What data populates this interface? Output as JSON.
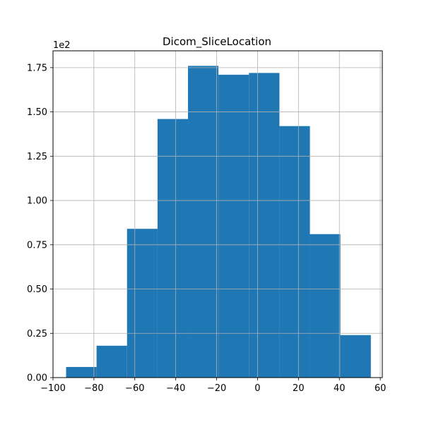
{
  "chart_data": {
    "type": "bar",
    "title": "Dicom_SliceLocation",
    "xlabel": "",
    "ylabel": "",
    "y_offset_label": "1e2",
    "bar_color": "#1f77b4",
    "grid": true,
    "xlim": [
      -100,
      61
    ],
    "ylim": [
      0,
      1.845
    ],
    "x_ticks": [
      -100,
      -80,
      -60,
      -40,
      -20,
      0,
      20,
      40,
      60
    ],
    "x_tick_labels": [
      "−100",
      "−80",
      "−60",
      "−40",
      "−20",
      "0",
      "20",
      "40",
      "60"
    ],
    "y_ticks": [
      0,
      0.25,
      0.5,
      0.75,
      1.0,
      1.25,
      1.5,
      1.75
    ],
    "y_tick_labels": [
      "0.00",
      "0.25",
      "0.50",
      "0.75",
      "1.00",
      "1.25",
      "1.50",
      "1.75"
    ],
    "bins": [
      {
        "x0": -93.6,
        "x1": -78.7,
        "value": 0.06
      },
      {
        "x0": -78.7,
        "x1": -63.8,
        "value": 0.18
      },
      {
        "x0": -63.8,
        "x1": -48.9,
        "value": 0.84
      },
      {
        "x0": -48.9,
        "x1": -34.0,
        "value": 1.46
      },
      {
        "x0": -34.0,
        "x1": -19.1,
        "value": 1.76
      },
      {
        "x0": -19.1,
        "x1": -4.2,
        "value": 1.71
      },
      {
        "x0": -4.2,
        "x1": 10.7,
        "value": 1.72
      },
      {
        "x0": 10.7,
        "x1": 25.6,
        "value": 1.42
      },
      {
        "x0": 25.6,
        "x1": 40.5,
        "value": 0.81
      },
      {
        "x0": 40.5,
        "x1": 55.4,
        "value": 0.24
      }
    ]
  }
}
